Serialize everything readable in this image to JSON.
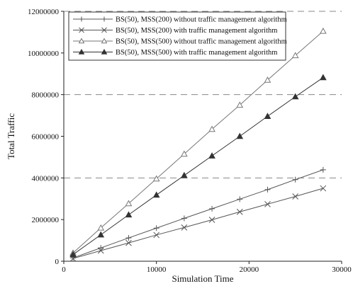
{
  "chart_data": {
    "type": "line",
    "title": "",
    "xlabel": "Simulation Time",
    "ylabel": "Total Traffic",
    "xlim": [
      0,
      30000
    ],
    "ylim": [
      0,
      12000000
    ],
    "x_ticks": [
      0,
      10000,
      20000,
      30000
    ],
    "x_tick_labels": [
      "0",
      "10000",
      "20000",
      "30000"
    ],
    "y_ticks": [
      0,
      2000000,
      4000000,
      6000000,
      8000000,
      10000000,
      12000000
    ],
    "y_tick_labels": [
      "0",
      "2000000",
      "4000000",
      "6000000",
      "8000000",
      "10000000",
      "12000000"
    ],
    "grid": "horizontal dashed at 4000000, 8000000, 12000000",
    "grid_values": [
      4000000,
      8000000,
      12000000
    ],
    "legend_position": "top-left",
    "x": [
      1000,
      4000,
      7000,
      10000,
      13000,
      16000,
      19000,
      22000,
      25000,
      28000
    ],
    "series": [
      {
        "name": "BS(50), MSS(200) without traffic management algorithm",
        "marker": "plus",
        "color": "#555555",
        "values": [
          160000,
          640000,
          1120000,
          1590000,
          2060000,
          2520000,
          2980000,
          3440000,
          3920000,
          4390000
        ]
      },
      {
        "name": "BS(50), MSS(200) with traffic management algorithm",
        "marker": "x",
        "color": "#555555",
        "values": [
          130000,
          510000,
          880000,
          1260000,
          1620000,
          1990000,
          2370000,
          2740000,
          3110000,
          3500000
        ]
      },
      {
        "name": "BS(50), MSS(500) without traffic management algorithm",
        "marker": "triangle-open",
        "color": "#777777",
        "values": [
          400000,
          1600000,
          2770000,
          3960000,
          5150000,
          6340000,
          7500000,
          8700000,
          9880000,
          11050000
        ]
      },
      {
        "name": "BS(50), MSS(500) with traffic management algorithm",
        "marker": "triangle-filled",
        "color": "#333333",
        "values": [
          320000,
          1270000,
          2230000,
          3180000,
          4120000,
          5060000,
          6000000,
          6960000,
          7900000,
          8820000
        ]
      }
    ]
  }
}
